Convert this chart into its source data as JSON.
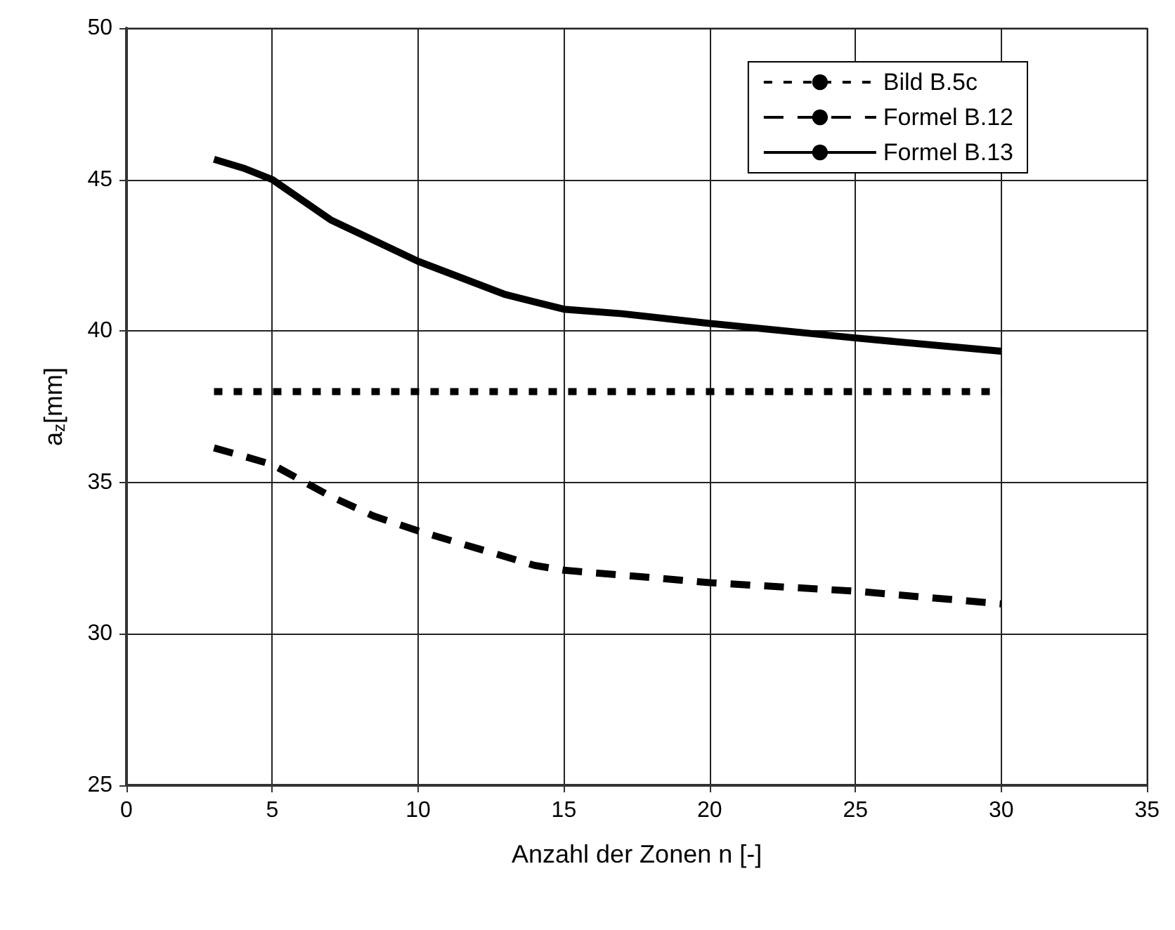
{
  "chart_data": {
    "type": "line",
    "xlabel": "Anzahl der Zonen n [-]",
    "ylabel": "a$_{z}$[mm]",
    "xlim": [
      0,
      35
    ],
    "xticks": [
      0,
      5,
      10,
      15,
      20,
      25,
      30,
      35
    ],
    "ylim": [
      25,
      50
    ],
    "yticks": [
      25,
      30,
      35,
      40,
      45,
      50
    ],
    "grid": true,
    "legend": "top right",
    "marker": "none",
    "series": [
      {
        "name": "Bild B.5c",
        "color": "#000000",
        "line_style": "dotted",
        "x": [
          3,
          30
        ],
        "values": [
          38,
          38
        ]
      },
      {
        "name": "Formel B.12",
        "color": "#000000",
        "line_style": "dashed",
        "x": [
          3,
          4,
          5,
          7,
          8.5,
          10,
          12,
          14,
          15,
          17,
          20,
          25,
          30
        ],
        "values": [
          36.14,
          35.87,
          35.59,
          34.54,
          33.88,
          33.4,
          32.83,
          32.26,
          32.1,
          31.94,
          31.69,
          31.41,
          30.99
        ]
      },
      {
        "name": "Formel B.13",
        "color": "#000000",
        "line_style": "solid",
        "x": [
          3,
          4,
          5,
          7,
          10,
          13,
          15,
          17,
          20,
          25,
          30
        ],
        "values": [
          45.67,
          45.38,
          45.0,
          43.67,
          42.3,
          41.2,
          40.72,
          40.57,
          40.25,
          39.77,
          39.33
        ]
      }
    ]
  }
}
